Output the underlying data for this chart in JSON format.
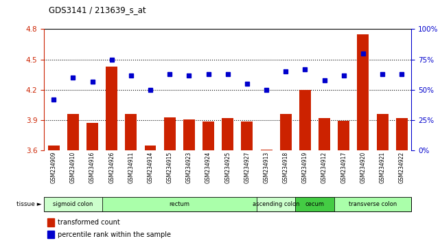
{
  "title": "GDS3141 / 213639_s_at",
  "samples": [
    "GSM234909",
    "GSM234910",
    "GSM234916",
    "GSM234926",
    "GSM234911",
    "GSM234914",
    "GSM234915",
    "GSM234923",
    "GSM234924",
    "GSM234925",
    "GSM234927",
    "GSM234913",
    "GSM234918",
    "GSM234919",
    "GSM234912",
    "GSM234917",
    "GSM234920",
    "GSM234921",
    "GSM234922"
  ],
  "bar_values": [
    3.65,
    3.96,
    3.875,
    4.43,
    3.96,
    3.65,
    3.93,
    3.91,
    3.885,
    3.92,
    3.885,
    3.61,
    3.96,
    4.2,
    3.92,
    3.895,
    4.75,
    3.96,
    3.92
  ],
  "dot_values": [
    42,
    60,
    57,
    75,
    62,
    50,
    63,
    62,
    63,
    63,
    55,
    50,
    65,
    67,
    58,
    62,
    80,
    63,
    63
  ],
  "ylim_left": [
    3.6,
    4.8
  ],
  "ylim_right": [
    0,
    100
  ],
  "yticks_left": [
    3.6,
    3.9,
    4.2,
    4.5,
    4.8
  ],
  "yticks_right": [
    0,
    25,
    50,
    75,
    100
  ],
  "ytick_labels_right": [
    "0%",
    "25%",
    "50%",
    "75%",
    "100%"
  ],
  "hlines": [
    3.9,
    4.2,
    4.5
  ],
  "bar_color": "#cc2200",
  "dot_color": "#0000cc",
  "bar_bottom": 3.6,
  "tissue_groups": [
    {
      "label": "sigmoid colon",
      "start": 0,
      "end": 3,
      "color": "#ccffcc"
    },
    {
      "label": "rectum",
      "start": 3,
      "end": 11,
      "color": "#aaffaa"
    },
    {
      "label": "ascending colon",
      "start": 11,
      "end": 13,
      "color": "#ccffcc"
    },
    {
      "label": "cecum",
      "start": 13,
      "end": 15,
      "color": "#44cc44"
    },
    {
      "label": "transverse colon",
      "start": 15,
      "end": 19,
      "color": "#aaffaa"
    }
  ],
  "legend_bar_label": "transformed count",
  "legend_dot_label": "percentile rank within the sample",
  "background_color": "#ffffff",
  "tick_label_color_left": "#cc2200",
  "tick_label_color_right": "#0000cc"
}
